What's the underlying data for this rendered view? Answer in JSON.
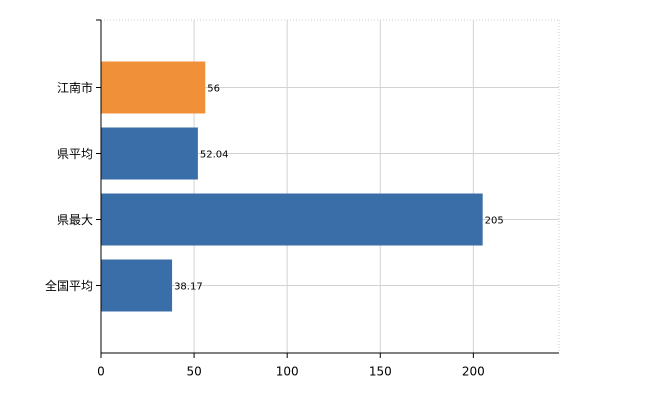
{
  "chart_data": {
    "type": "hbar",
    "categories": [
      "江南市",
      "県平均",
      "県最大",
      "全国平均"
    ],
    "values": [
      56,
      52.04,
      205,
      38.17
    ],
    "colors": [
      "#f0913a",
      "#3a6ea8",
      "#3a6ea8",
      "#3a6ea8"
    ],
    "xlim": [
      0,
      246
    ],
    "xticks": [
      0,
      50,
      100,
      150,
      200
    ],
    "grid": true
  }
}
